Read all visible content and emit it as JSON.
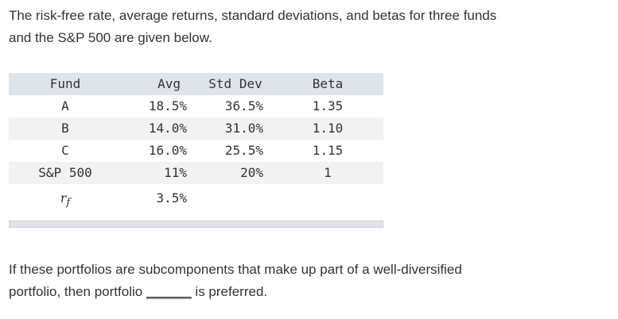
{
  "intro": {
    "lines": [
      "The risk-free rate, average returns, standard deviations, and betas for three funds",
      "and the S&P 500 are given below."
    ]
  },
  "table": {
    "headers": [
      "Fund",
      "Avg",
      "Std Dev",
      "Beta"
    ],
    "rows": [
      {
        "fund": "A",
        "avg": "18.5%",
        "std_dev": "36.5%",
        "beta": "1.35"
      },
      {
        "fund": "B",
        "avg": "14.0%",
        "std_dev": "31.0%",
        "beta": "1.10"
      },
      {
        "fund": "C",
        "avg": "16.0%",
        "std_dev": "25.5%",
        "beta": "1.15"
      },
      {
        "fund": "S&P 500",
        "avg": "11%",
        "std_dev": "20%",
        "beta": "1"
      },
      {
        "fund_symbol": "r",
        "fund_subscript": "f",
        "avg": "3.5%"
      }
    ]
  },
  "question": {
    "line1": "If these portfolios are subcomponents that make up part of a well-diversified",
    "line2_before": "portfolio, then portfolio",
    "blank": "______",
    "line2_after": "is preferred."
  }
}
